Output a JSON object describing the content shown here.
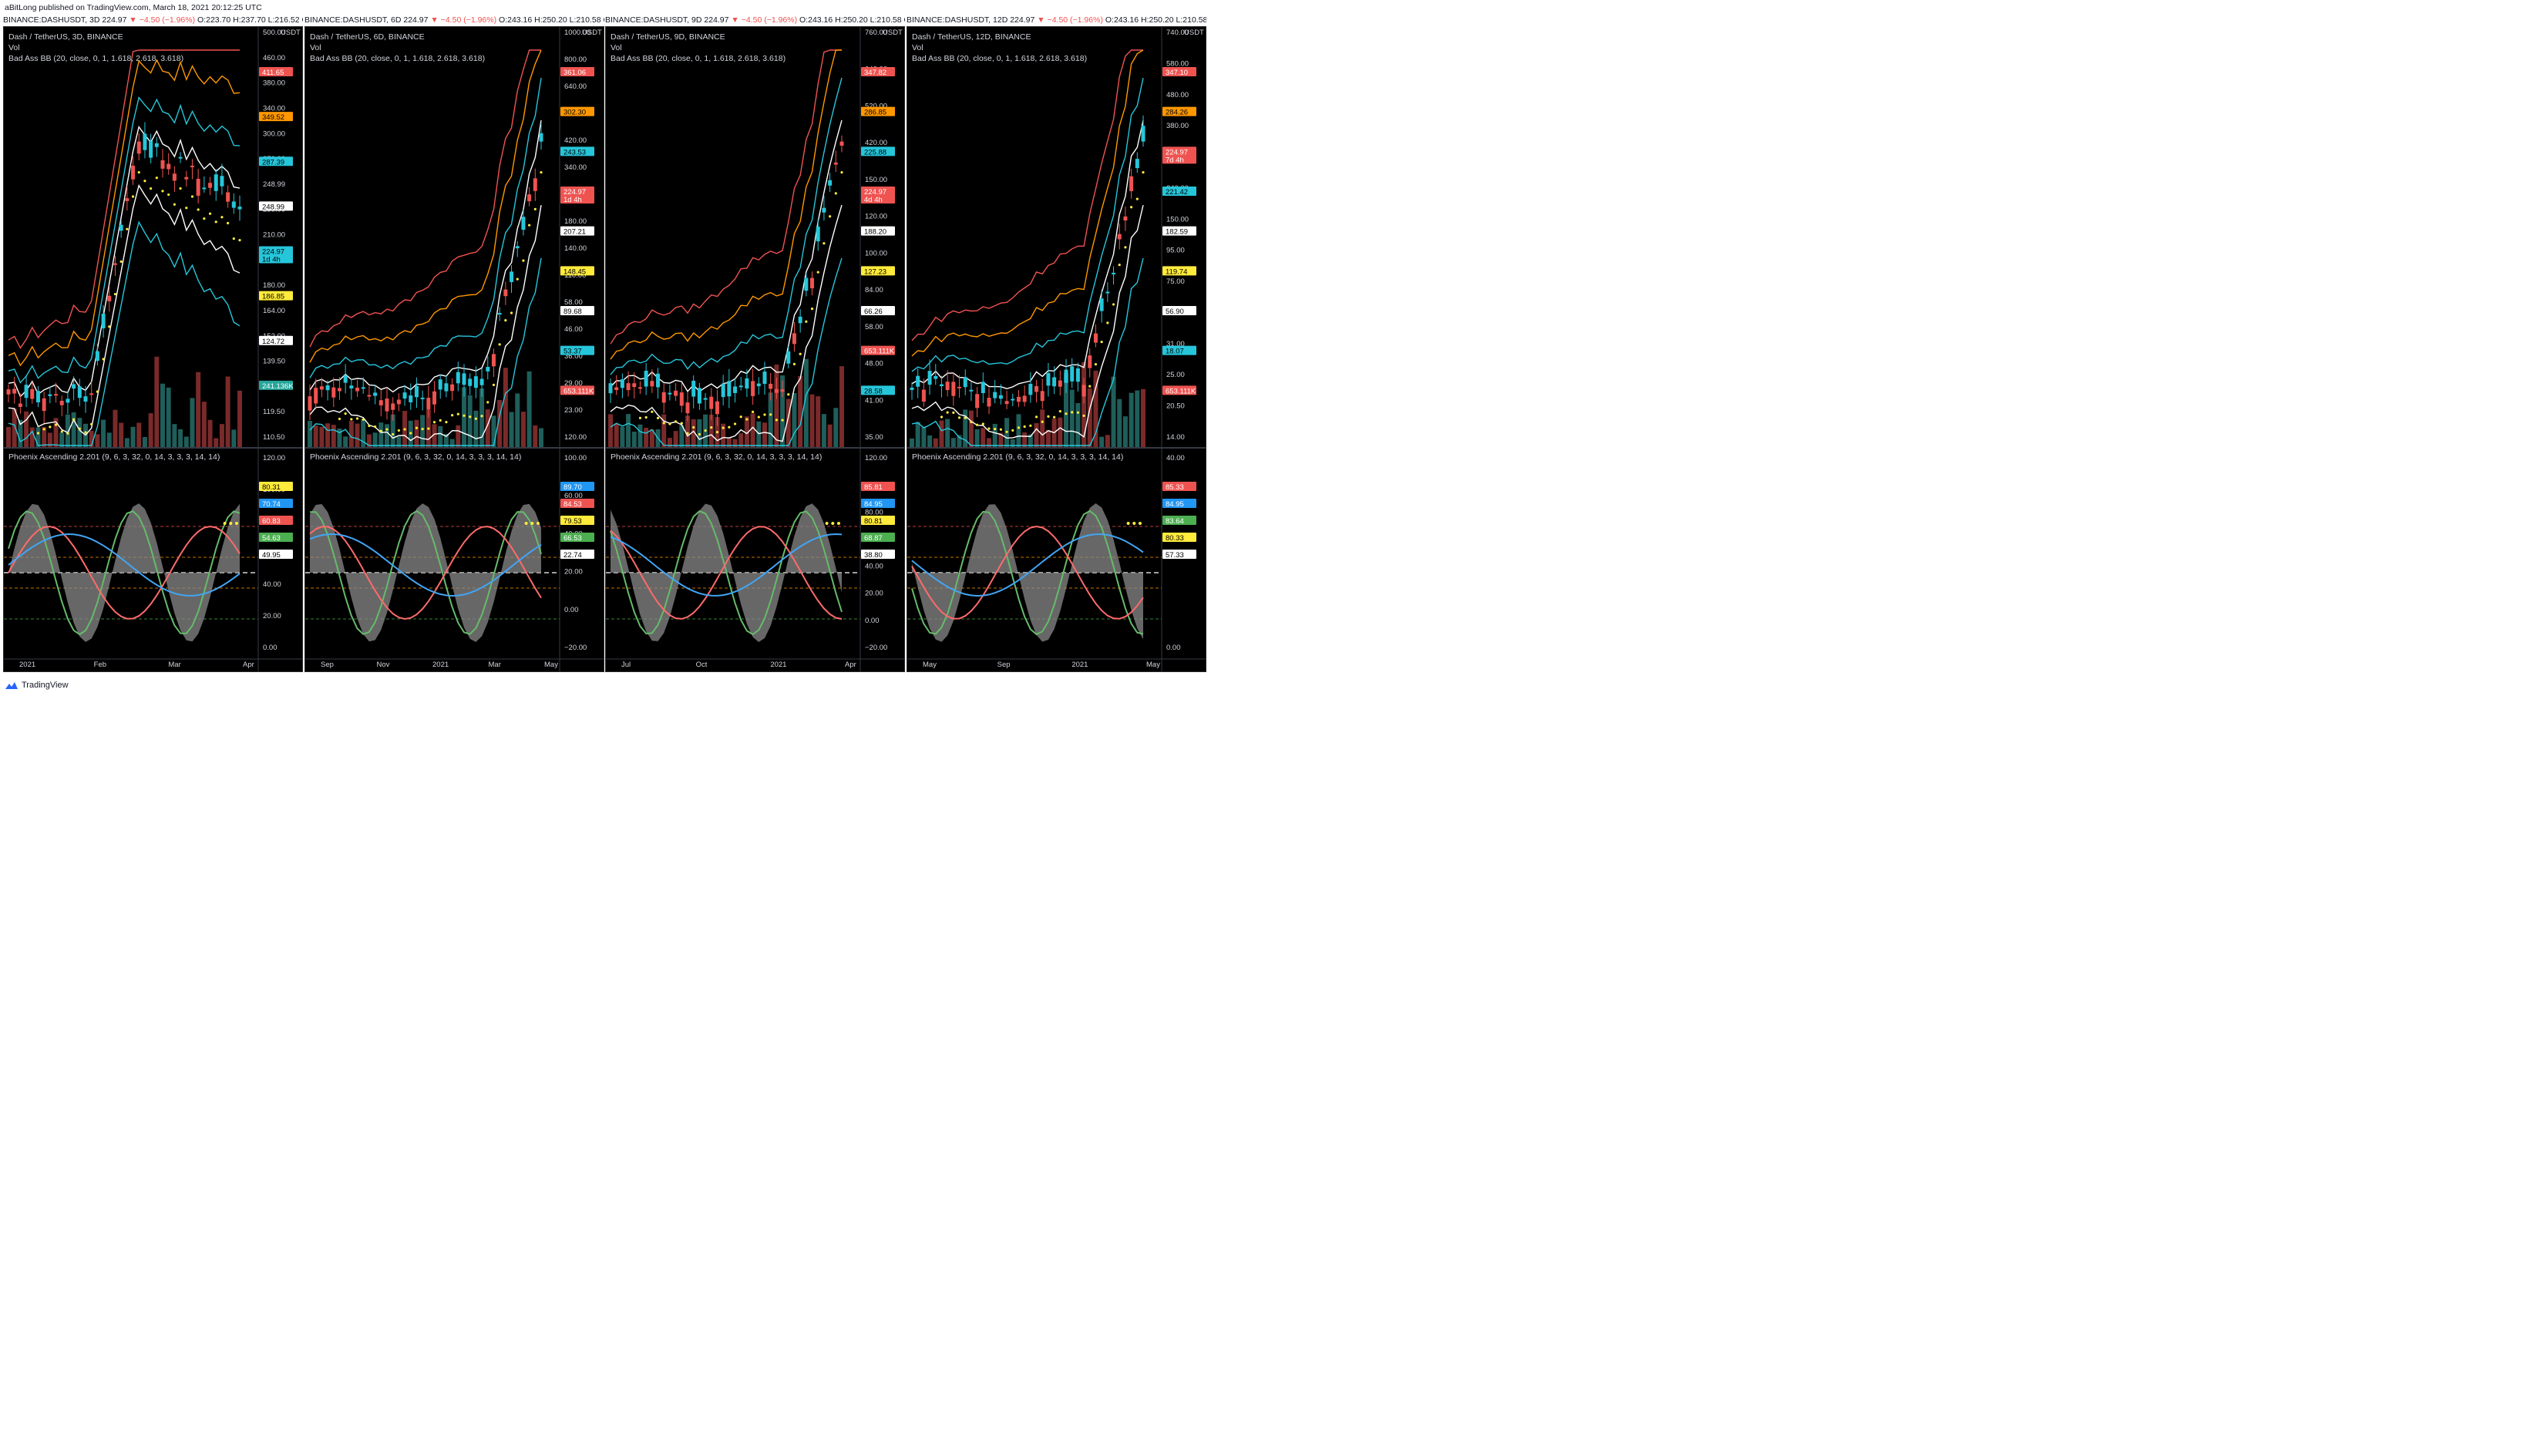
{
  "header": {
    "author": "aBitLong",
    "published": "published on TradingView.com, March 18, 2021 20:12:25 UTC"
  },
  "footer": {
    "brand": "TradingView"
  },
  "colors": {
    "up": "#26c6da",
    "down": "#ef5350",
    "mid_band": "#ffffff",
    "band1": "#26c6da",
    "band2": "#ff9800",
    "band3": "#ef5350",
    "psar": "#ffeb3b",
    "osc_green": "#66bb6a",
    "osc_red": "#ff6b6b",
    "osc_blue": "#42a5f5",
    "osc_gray": "#9e9e9e"
  },
  "panels": [
    {
      "symline": {
        "symbol": "BINANCE:DASHUSDT, 3D",
        "close": "224.97",
        "change": "▼ −4.50 (−1.96%)",
        "ohlc": "O:223.70 H:237.70 L:216.52 C:2"
      },
      "title": "Dash / TetherUS, 3D, BINANCE",
      "vol": "Vol",
      "bb": "Bad Ass BB (20, close, 0, 1, 1.618, 2.618, 3.618)",
      "osc": "Phoenix Ascending 2.201 (9, 6, 3, 32, 0, 14, 3, 3, 3, 14, 14)",
      "currency": "USDT",
      "price_axis": [
        "500.00",
        "460.00",
        "380.00",
        "340.00",
        "300.00",
        "270.00",
        "248.99",
        "230.00",
        "210.00",
        "195.00",
        "180.00",
        "164.00",
        "152.00",
        "139.50",
        "129.50",
        "119.50",
        "110.50"
      ],
      "price_tags": [
        {
          "text": "411.65",
          "color": "#ef5350",
          "fg": "#ffffff"
        },
        {
          "text": "349.52",
          "color": "#ff9800",
          "fg": "#000000"
        },
        {
          "text": "287.39",
          "color": "#26c6da",
          "fg": "#000000"
        },
        {
          "text": "248.99",
          "color": "#ffffff",
          "fg": "#000000"
        },
        {
          "text": "224.97",
          "sub": "1d 4h",
          "color": "#26c6da",
          "fg": "#000000"
        },
        {
          "text": "186.85",
          "color": "#ffeb3b",
          "fg": "#000000"
        },
        {
          "text": "124.72",
          "color": "#ffffff",
          "fg": "#000000"
        },
        {
          "text": "241.136K",
          "color": "#26a69a",
          "fg": "#ffffff"
        }
      ],
      "osc_axis": [
        "120.00",
        "100.00",
        "80.00",
        "60.00",
        "40.00",
        "20.00",
        "0.00"
      ],
      "osc_tags": [
        {
          "text": "80.31",
          "color": "#ffeb3b",
          "fg": "#000000"
        },
        {
          "text": "70.74",
          "color": "#2196f3",
          "fg": "#ffffff"
        },
        {
          "text": "60.83",
          "color": "#ef5350",
          "fg": "#ffffff"
        },
        {
          "text": "54.63",
          "color": "#4caf50",
          "fg": "#ffffff"
        },
        {
          "text": "49.95",
          "color": "#ffffff",
          "fg": "#000000"
        }
      ],
      "time_axis": [
        "2021",
        "Feb",
        "Mar",
        "Apr"
      ]
    },
    {
      "symline": {
        "symbol": "BINANCE:DASHUSDT, 6D",
        "close": "224.97",
        "change": "▼ −4.50 (−1.96%)",
        "ohlc": "O:243.16 H:250.20 L:210.58 C:224.97"
      },
      "title": "Dash / TetherUS, 6D, BINANCE",
      "vol": "Vol",
      "bb": "Bad Ass BB (20, close, 0, 1, 1.618, 2.618, 3.618)",
      "osc": "Phoenix Ascending 2.201 (9, 6, 3, 32, 0, 14, 3, 3, 3, 14, 14)",
      "currency": "USDT",
      "price_axis": [
        "1000.00",
        "800.00",
        "640.00",
        "520.00",
        "420.00",
        "340.00",
        "280.00",
        "180.00",
        "140.00",
        "110.00",
        "58.00",
        "46.00",
        "36.00",
        "29.00",
        "23.00",
        "120.00"
      ],
      "price_tags": [
        {
          "text": "361.06",
          "color": "#ef5350",
          "fg": "#ffffff"
        },
        {
          "text": "302.30",
          "color": "#ff9800",
          "fg": "#000000"
        },
        {
          "text": "243.53",
          "color": "#26c6da",
          "fg": "#000000"
        },
        {
          "text": "224.97",
          "sub": "1d 4h",
          "color": "#ef5350",
          "fg": "#ffffff"
        },
        {
          "text": "207.21",
          "color": "#ffffff",
          "fg": "#000000"
        },
        {
          "text": "148.45",
          "color": "#ffeb3b",
          "fg": "#000000"
        },
        {
          "text": "89.68",
          "color": "#ffffff",
          "fg": "#000000"
        },
        {
          "text": "53.37",
          "color": "#26c6da",
          "fg": "#000000"
        },
        {
          "text": "653.111K",
          "color": "#ef5350",
          "fg": "#ffffff"
        }
      ],
      "osc_axis": [
        "100.00",
        "60.00",
        "40.00",
        "20.00",
        "0.00",
        "−20.00"
      ],
      "osc_tags": [
        {
          "text": "89.70",
          "color": "#2196f3",
          "fg": "#ffffff"
        },
        {
          "text": "84.53",
          "color": "#ef5350",
          "fg": "#ffffff"
        },
        {
          "text": "79.53",
          "color": "#ffeb3b",
          "fg": "#000000"
        },
        {
          "text": "66.53",
          "color": "#4caf50",
          "fg": "#ffffff"
        },
        {
          "text": "22.74",
          "color": "#ffffff",
          "fg": "#000000"
        }
      ],
      "time_axis": [
        "Sep",
        "Nov",
        "2021",
        "Mar",
        "May"
      ]
    },
    {
      "symline": {
        "symbol": "BINANCE:DASHUSDT, 9D",
        "close": "224.97",
        "change": "▼ −4.50 (−1.96%)",
        "ohlc": "O:243.16 H:250.20 L:210.58 C:224.97"
      },
      "title": "Dash / TetherUS, 9D, BINANCE",
      "vol": "Vol",
      "bb": "Bad Ass BB (20, close, 0, 1, 1.618, 2.618, 3.618)",
      "osc": "Phoenix Ascending 2.201 (9, 6, 3, 32, 0, 14, 3, 3, 3, 14, 14)",
      "currency": "USDT",
      "price_axis": [
        "760.00",
        "640.00",
        "520.00",
        "420.00",
        "150.00",
        "120.00",
        "100.00",
        "84.00",
        "58.00",
        "48.00",
        "41.00",
        "35.00"
      ],
      "price_tags": [
        {
          "text": "347.82",
          "color": "#ef5350",
          "fg": "#ffffff"
        },
        {
          "text": "286.85",
          "color": "#ff9800",
          "fg": "#000000"
        },
        {
          "text": "225.88",
          "color": "#26c6da",
          "fg": "#000000"
        },
        {
          "text": "224.97",
          "sub": "4d 4h",
          "color": "#ef5350",
          "fg": "#ffffff"
        },
        {
          "text": "188.20",
          "color": "#ffffff",
          "fg": "#000000"
        },
        {
          "text": "127.23",
          "color": "#ffeb3b",
          "fg": "#000000"
        },
        {
          "text": "66.26",
          "color": "#ffffff",
          "fg": "#000000"
        },
        {
          "text": "653.111K",
          "color": "#ef5350",
          "fg": "#ffffff"
        },
        {
          "text": "28.58",
          "color": "#26c6da",
          "fg": "#000000"
        }
      ],
      "osc_axis": [
        "120.00",
        "100.00",
        "80.00",
        "60.00",
        "40.00",
        "20.00",
        "0.00",
        "−20.00"
      ],
      "osc_tags": [
        {
          "text": "85.81",
          "color": "#ef5350",
          "fg": "#ffffff"
        },
        {
          "text": "84.95",
          "color": "#2196f3",
          "fg": "#ffffff"
        },
        {
          "text": "80.81",
          "color": "#ffeb3b",
          "fg": "#000000"
        },
        {
          "text": "68.87",
          "color": "#4caf50",
          "fg": "#ffffff"
        },
        {
          "text": "38.80",
          "color": "#ffffff",
          "fg": "#000000"
        }
      ],
      "time_axis": [
        "Jul",
        "Oct",
        "2021",
        "Apr"
      ]
    },
    {
      "symline": {
        "symbol": "BINANCE:DASHUSDT, 12D",
        "close": "224.97",
        "change": "▼ −4.50 (−1.96%)",
        "ohlc": "O:243.16 H:250.20 L:210.58 C:"
      },
      "title": "Dash / TetherUS, 12D, BINANCE",
      "vol": "Vol",
      "bb": "Bad Ass BB (20, close, 0, 1, 1.618, 2.618, 3.618)",
      "osc": "Phoenix Ascending 2.201 (9, 6, 3, 32, 0, 14, 3, 3, 3, 14, 14)",
      "currency": "USDT",
      "price_axis": [
        "740.00",
        "580.00",
        "480.00",
        "380.00",
        "300.00",
        "240.00",
        "150.00",
        "95.00",
        "75.00",
        "39.00",
        "31.00",
        "25.00",
        "20.50",
        "14.00"
      ],
      "price_tags": [
        {
          "text": "347.10",
          "color": "#ef5350",
          "fg": "#ffffff"
        },
        {
          "text": "284.26",
          "color": "#ff9800",
          "fg": "#000000"
        },
        {
          "text": "224.97",
          "sub": "7d 4h",
          "color": "#ef5350",
          "fg": "#ffffff"
        },
        {
          "text": "221.42",
          "color": "#26c6da",
          "fg": "#000000"
        },
        {
          "text": "182.59",
          "color": "#ffffff",
          "fg": "#000000"
        },
        {
          "text": "119.74",
          "color": "#ffeb3b",
          "fg": "#000000"
        },
        {
          "text": "56.90",
          "color": "#ffffff",
          "fg": "#000000"
        },
        {
          "text": "18.07",
          "color": "#26c6da",
          "fg": "#000000"
        },
        {
          "text": "653.111K",
          "color": "#ef5350",
          "fg": "#ffffff"
        }
      ],
      "osc_axis": [
        "40.00",
        "20.00",
        "0.00"
      ],
      "osc_tags": [
        {
          "text": "85.33",
          "color": "#ef5350",
          "fg": "#ffffff"
        },
        {
          "text": "84.95",
          "color": "#2196f3",
          "fg": "#ffffff"
        },
        {
          "text": "83.64",
          "color": "#4caf50",
          "fg": "#ffffff"
        },
        {
          "text": "80.33",
          "color": "#ffeb3b",
          "fg": "#000000"
        },
        {
          "text": "57.33",
          "color": "#ffffff",
          "fg": "#000000"
        }
      ],
      "time_axis": [
        "May",
        "Sep",
        "2021",
        "May"
      ]
    }
  ]
}
